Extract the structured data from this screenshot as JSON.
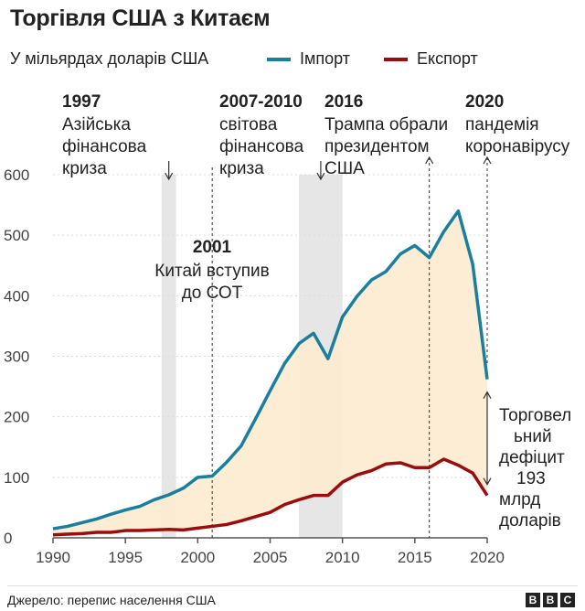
{
  "header": {
    "title": "Торгівля США з Китаєм",
    "subtitle": "У мільярдах доларів США"
  },
  "legend": {
    "import_label": "Імпорт",
    "export_label": "Експорт"
  },
  "colors": {
    "import": "#1a7f9c",
    "export": "#9b0d0d",
    "deficit_fill": "#fdebd0",
    "shade": "#e6e6e6"
  },
  "footer": {
    "source": "Джерело: перепис населення США",
    "logo_letters": [
      "B",
      "B",
      "C"
    ]
  },
  "chart_data": {
    "type": "line",
    "x": [
      1990,
      1991,
      1992,
      1993,
      1994,
      1995,
      1996,
      1997,
      1998,
      1999,
      2000,
      2001,
      2002,
      2003,
      2004,
      2005,
      2006,
      2007,
      2008,
      2009,
      2010,
      2011,
      2012,
      2013,
      2014,
      2015,
      2016,
      2017,
      2018,
      2019,
      2020
    ],
    "series": [
      {
        "name": "Імпорт",
        "values": [
          15,
          19,
          25,
          31,
          39,
          46,
          52,
          63,
          71,
          82,
          100,
          102,
          125,
          152,
          197,
          243,
          288,
          321,
          338,
          296,
          365,
          399,
          426,
          440,
          469,
          483,
          463,
          506,
          540,
          452,
          262
        ]
      },
      {
        "name": "Експорт",
        "values": [
          5,
          6,
          7,
          9,
          9,
          12,
          12,
          13,
          14,
          13,
          16,
          19,
          22,
          28,
          35,
          42,
          55,
          63,
          70,
          70,
          92,
          104,
          111,
          122,
          124,
          116,
          116,
          130,
          120,
          107,
          70
        ]
      }
    ],
    "xlim": [
      1990,
      2020
    ],
    "ylim": [
      0,
      600
    ],
    "xticks": [
      1990,
      1995,
      2000,
      2005,
      2010,
      2015,
      2020
    ],
    "yticks": [
      0,
      100,
      200,
      300,
      400,
      500,
      600
    ],
    "shaded_periods": [
      [
        1997.5,
        1998.5
      ],
      [
        2007,
        2010
      ]
    ],
    "annotations": [
      {
        "year": "1997",
        "text": "Азійська фінансова криза",
        "lines": [
          "Азійська",
          "фінансова",
          "криза"
        ],
        "x": 1998
      },
      {
        "year": "2007-2010",
        "text": "світова фінансова криза",
        "lines": [
          "світова",
          "фінансова",
          "криза"
        ],
        "x": 2008.5
      },
      {
        "year": "2016",
        "text": "Трампа обрали президентом США",
        "lines": [
          "Трампа обрали",
          "президентом",
          "США"
        ],
        "x": 2016
      },
      {
        "year": "2020",
        "text": "пандемія коронавірусу",
        "lines": [
          "пандемія",
          "коронавірусу"
        ],
        "x": 2020
      },
      {
        "year": "2001",
        "text": "Китай вступив до СОТ",
        "lines": [
          "Китай вступив",
          "до СОТ"
        ],
        "x": 2001
      }
    ],
    "deficit_note": {
      "text": "Торговельний дефіцит 193 млрд доларів",
      "lines": [
        "Торговел",
        "ьний",
        "дефіцит",
        "193",
        "млрд",
        "доларів"
      ],
      "value": 193
    }
  }
}
